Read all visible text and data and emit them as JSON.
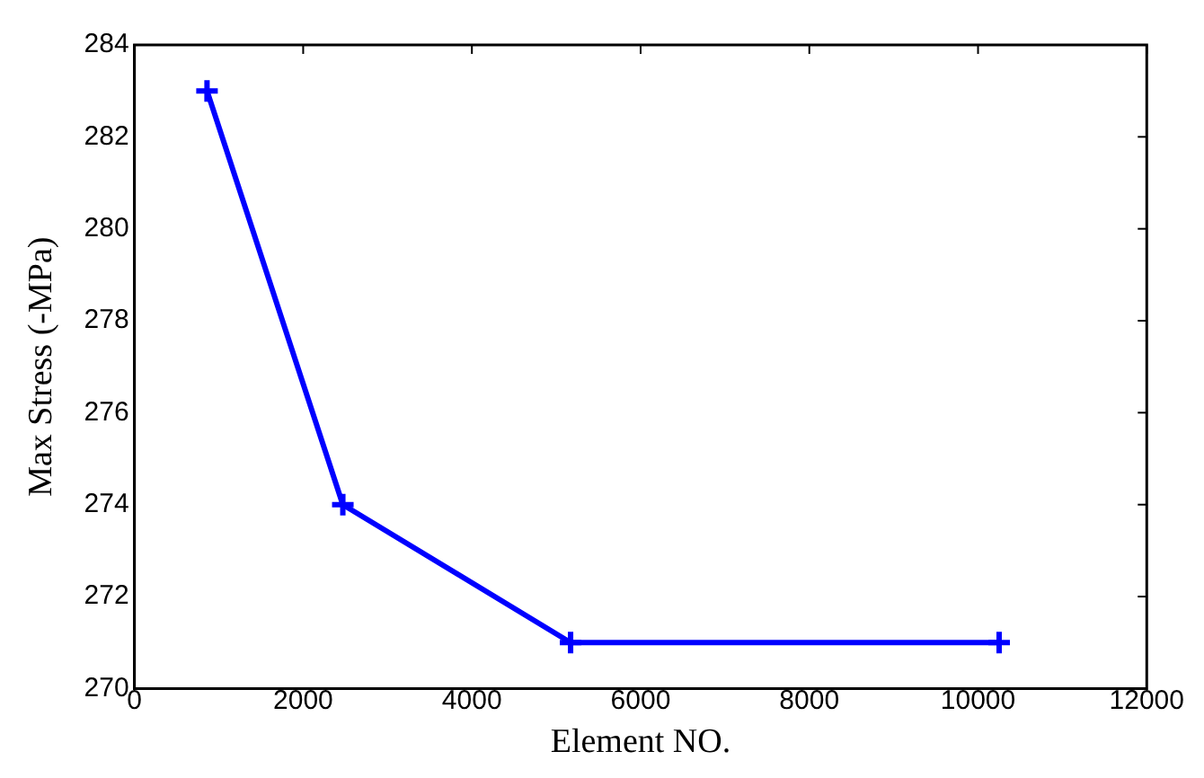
{
  "chart_data": {
    "type": "line",
    "xlabel": "Element NO.",
    "ylabel": "Max Stress (-MPa)",
    "x": [
      860,
      2470,
      5170,
      10250
    ],
    "series": [
      {
        "color": "#0000ff",
        "values": [
          283,
          274,
          271,
          271
        ]
      }
    ],
    "xlim": [
      0,
      12000
    ],
    "xticks": [
      0,
      2000,
      4000,
      6000,
      8000,
      10000,
      12000
    ],
    "ylim": [
      270,
      284
    ],
    "yticks": [
      270,
      272,
      274,
      276,
      278,
      280,
      282,
      284
    ],
    "grid": false,
    "legend": false,
    "marker": "cross",
    "line_style": "solid"
  }
}
